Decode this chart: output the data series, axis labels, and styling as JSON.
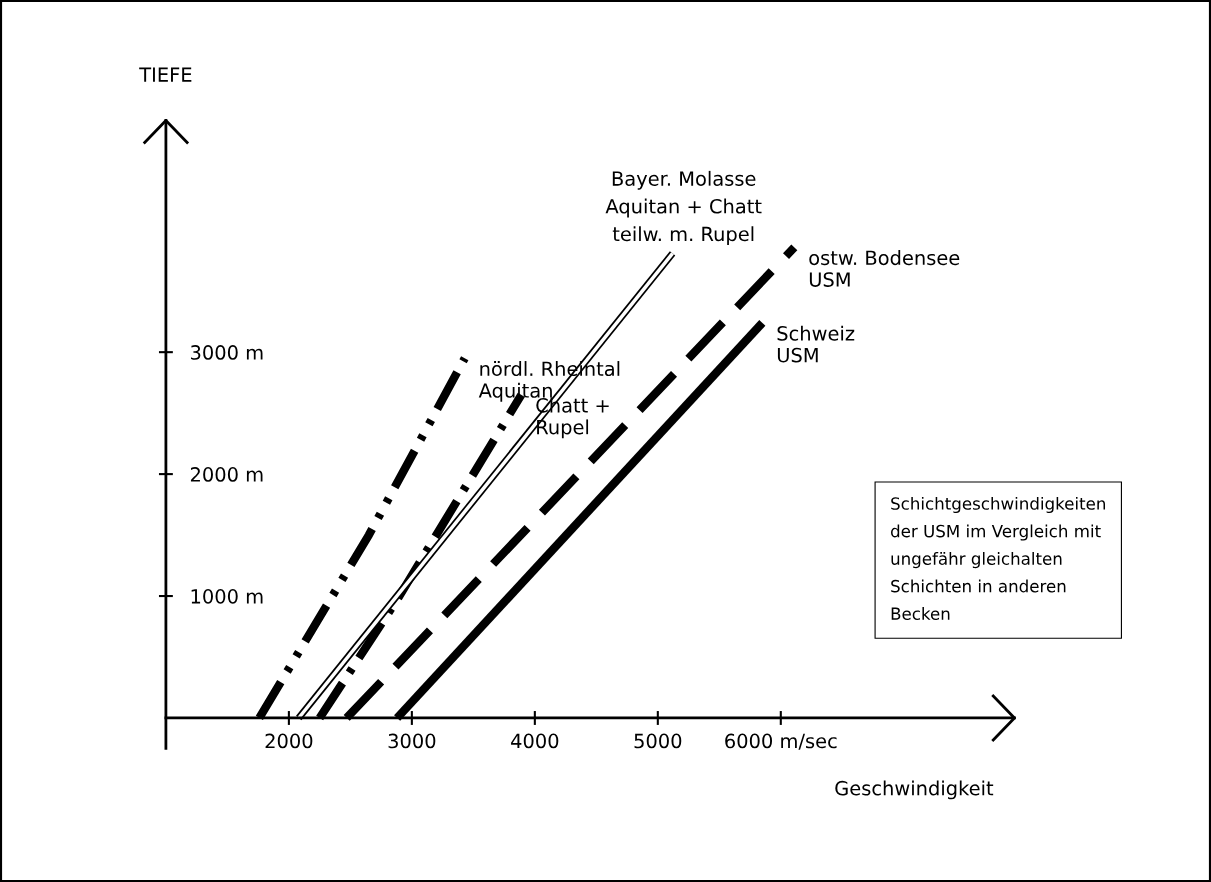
{
  "chart_data": {
    "type": "line",
    "xlabel": "Geschwindigkeit",
    "ylabel": "TIEFE",
    "xlim": [
      1000,
      7900
    ],
    "ylim": [
      -250,
      4900
    ],
    "xticks": [
      2000,
      3000,
      4000,
      5000,
      {
        "value": 6000,
        "label": "6000 m/sec"
      }
    ],
    "yticks": [
      {
        "value": 1000,
        "label": "1000 m"
      },
      {
        "value": 2000,
        "label": "2000 m"
      },
      {
        "value": 3000,
        "label": "3000 m"
      }
    ],
    "grid": false,
    "legend": false,
    "series": [
      {
        "name": "nördl. Rheintal\nAquitan",
        "color": "#000000",
        "line_style": "dashdotdot",
        "x": [
          1760,
          2650,
          3430
        ],
        "values": [
          0,
          1500,
          2950
        ]
      },
      {
        "name": "Chatt +\nRupel",
        "color": "#000000",
        "line_style": "dashdot",
        "x": [
          2250,
          2880,
          3890
        ],
        "values": [
          0,
          970,
          2650
        ]
      },
      {
        "name": "Bayer. Molasse\nAquitan + Chatt\nteilw. m. Rupel",
        "color": "#000000",
        "line_style": "solid",
        "x": [
          2080,
          5120
        ],
        "values": [
          0,
          3810
        ]
      },
      {
        "name": "ostw. Bodensee\nUSM",
        "color": "#000000",
        "line_style": "dashed",
        "x": [
          2470,
          6110
        ],
        "values": [
          0,
          3860
        ]
      },
      {
        "name": "Schweiz\nUSM",
        "color": "#000000",
        "line_style": "solid",
        "x": [
          2880,
          5850
        ],
        "values": [
          0,
          3240
        ]
      }
    ],
    "annotations": [
      "Schichtgeschwindigkeiten\nder USM im Vergleich mit\nungefähr gleichalten\nSchichten in anderen\nBecken"
    ]
  }
}
